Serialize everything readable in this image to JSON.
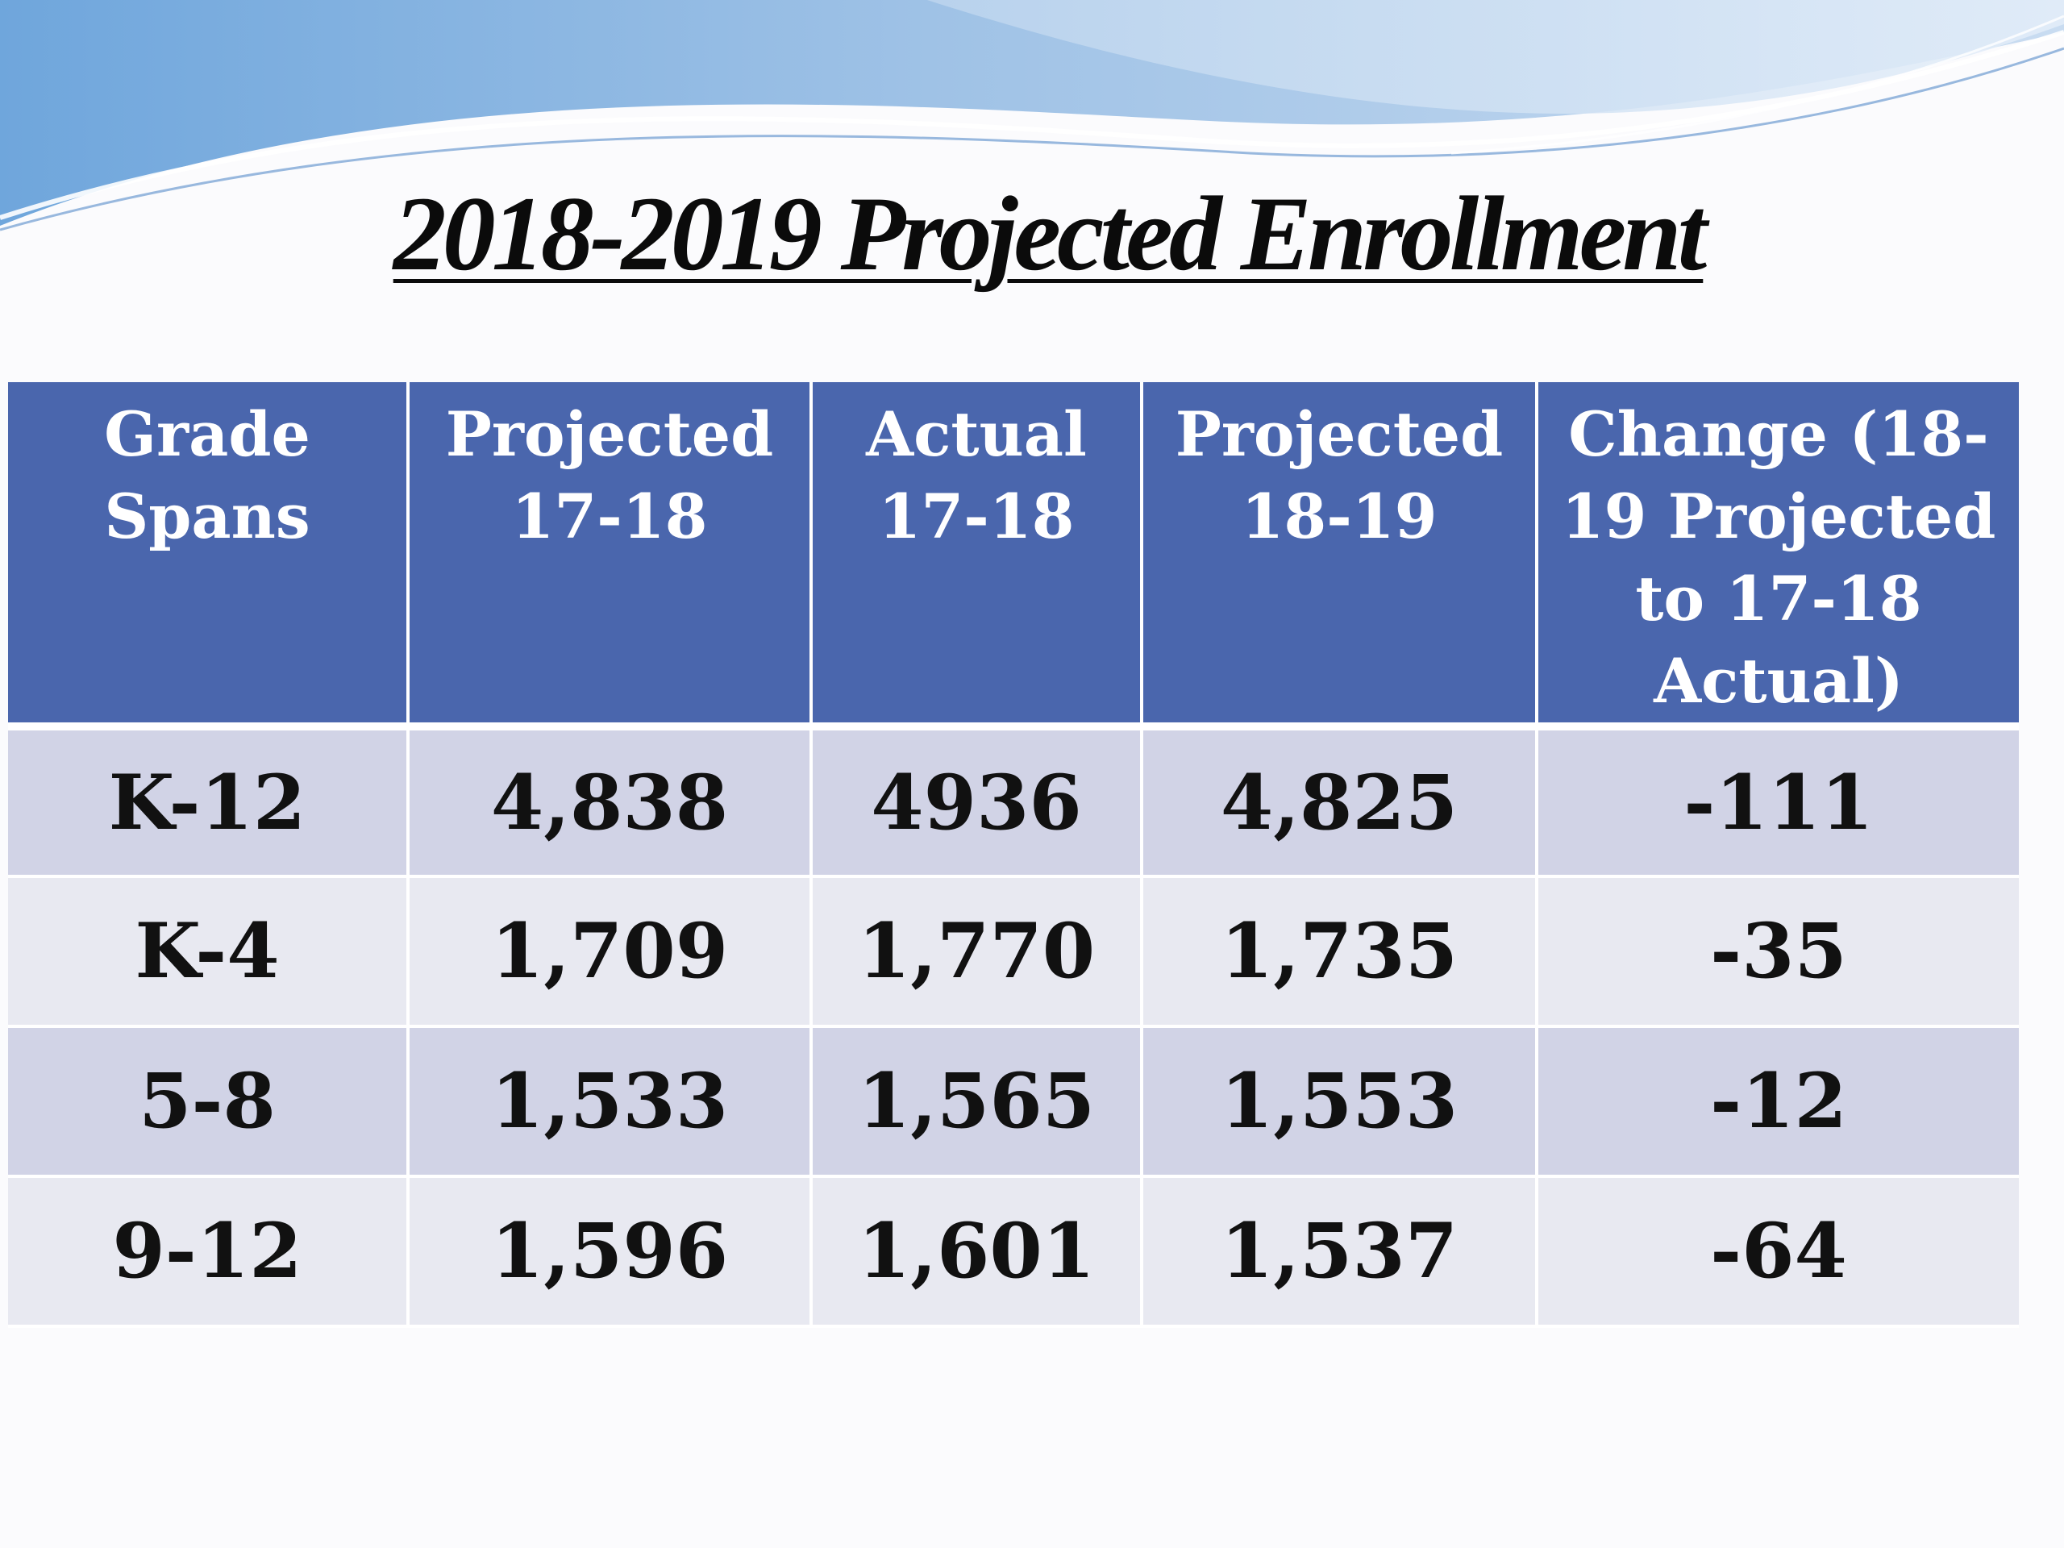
{
  "title": "2018-2019 Projected Enrollment",
  "colors": {
    "header_bg": "#4a66ad",
    "row_odd": "#d1d3e6",
    "row_even": "#e8e9f1",
    "wave_accent": "#5d95cf"
  },
  "table": {
    "headers": [
      "Grade Spans",
      "Projected 17-18",
      "Actual 17-18",
      "Projected 18-19",
      "Change (18-19 Projected to 17-18 Actual)"
    ],
    "rows": [
      [
        "K-12",
        "4,838",
        "4936",
        "4,825",
        "-111"
      ],
      [
        "K-4",
        "1,709",
        "1,770",
        "1,735",
        "-35"
      ],
      [
        "5-8",
        "1,533",
        "1,565",
        "1,553",
        "-12"
      ],
      [
        "9-12",
        "1,596",
        "1,601",
        "1,537",
        "-64"
      ]
    ]
  }
}
